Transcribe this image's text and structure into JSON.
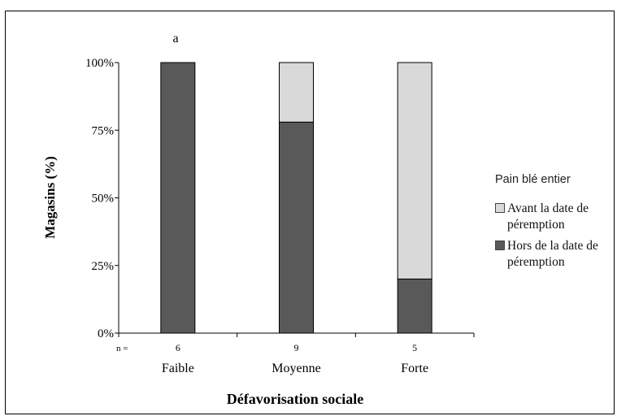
{
  "chart_data": {
    "type": "bar",
    "stacked": true,
    "panel_label": "a",
    "categories": [
      "Faible",
      "Moyenne",
      "Forte"
    ],
    "n_prefix": "n =",
    "n_values": [
      "6",
      "9",
      "5"
    ],
    "series": [
      {
        "name": "Hors de la date de péremption",
        "values": [
          100,
          78,
          20
        ],
        "color": "#595959"
      },
      {
        "name": "Avant la date de péremption",
        "values": [
          0,
          22,
          80
        ],
        "color": "#d9d9d9"
      }
    ],
    "ylim": [
      0,
      100
    ],
    "yticks": [
      0,
      25,
      50,
      75,
      100
    ],
    "ytick_labels": [
      "0%",
      "25%",
      "50%",
      "75%",
      "100%"
    ],
    "ylabel": "Magasins (%)",
    "xlabel": "Défavorisation sociale",
    "legend": {
      "title": "Pain blé entier",
      "position": "right",
      "items": [
        {
          "label": "Avant la date de péremption",
          "color": "#d9d9d9"
        },
        {
          "label": "Hors de la date de péremption",
          "color": "#595959"
        }
      ]
    }
  }
}
